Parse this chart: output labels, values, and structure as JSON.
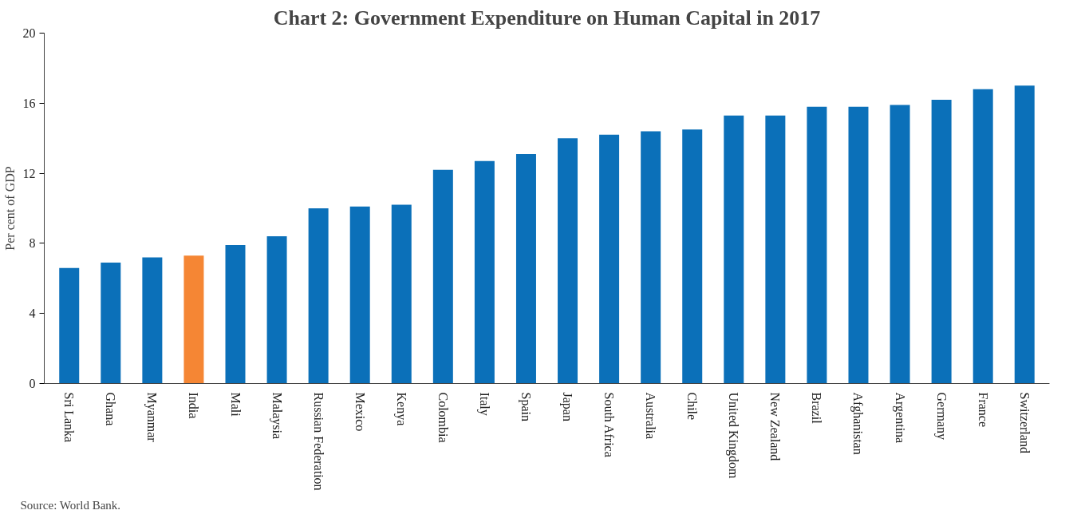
{
  "chart_data": {
    "type": "bar",
    "title": "Chart 2: Government Expenditure on Human Capital in 2017",
    "ylabel": "Per cent of GDP",
    "categories": [
      "Sri Lanka",
      "Ghana",
      "Myanmar",
      "India",
      "Mali",
      "Malaysia",
      "Russian Federation",
      "Mexico",
      "Kenya",
      "Colombia",
      "Italy",
      "Spain",
      "Japan",
      "South Africa",
      "Australia",
      "Chile",
      "United Kingdom",
      "New Zealand",
      "Brazil",
      "Afghanistan",
      "Argentina",
      "Germany",
      "France",
      "Switzerland"
    ],
    "values": [
      6.6,
      6.9,
      7.2,
      7.3,
      7.9,
      8.4,
      10.0,
      10.1,
      10.2,
      12.2,
      12.7,
      13.1,
      14.0,
      14.2,
      14.4,
      14.5,
      15.3,
      15.3,
      15.8,
      15.8,
      15.9,
      16.2,
      16.8,
      17.0
    ],
    "colors": [
      "#0b70b9",
      "#0b70b9",
      "#0b70b9",
      "#f58634",
      "#0b70b9",
      "#0b70b9",
      "#0b70b9",
      "#0b70b9",
      "#0b70b9",
      "#0b70b9",
      "#0b70b9",
      "#0b70b9",
      "#0b70b9",
      "#0b70b9",
      "#0b70b9",
      "#0b70b9",
      "#0b70b9",
      "#0b70b9",
      "#0b70b9",
      "#0b70b9",
      "#0b70b9",
      "#0b70b9",
      "#0b70b9",
      "#0b70b9"
    ],
    "ylim": [
      0,
      20
    ],
    "yticks": [
      0,
      4,
      8,
      12,
      16,
      20
    ],
    "grid": false,
    "annotations": [
      "Source: World Bank."
    ]
  }
}
